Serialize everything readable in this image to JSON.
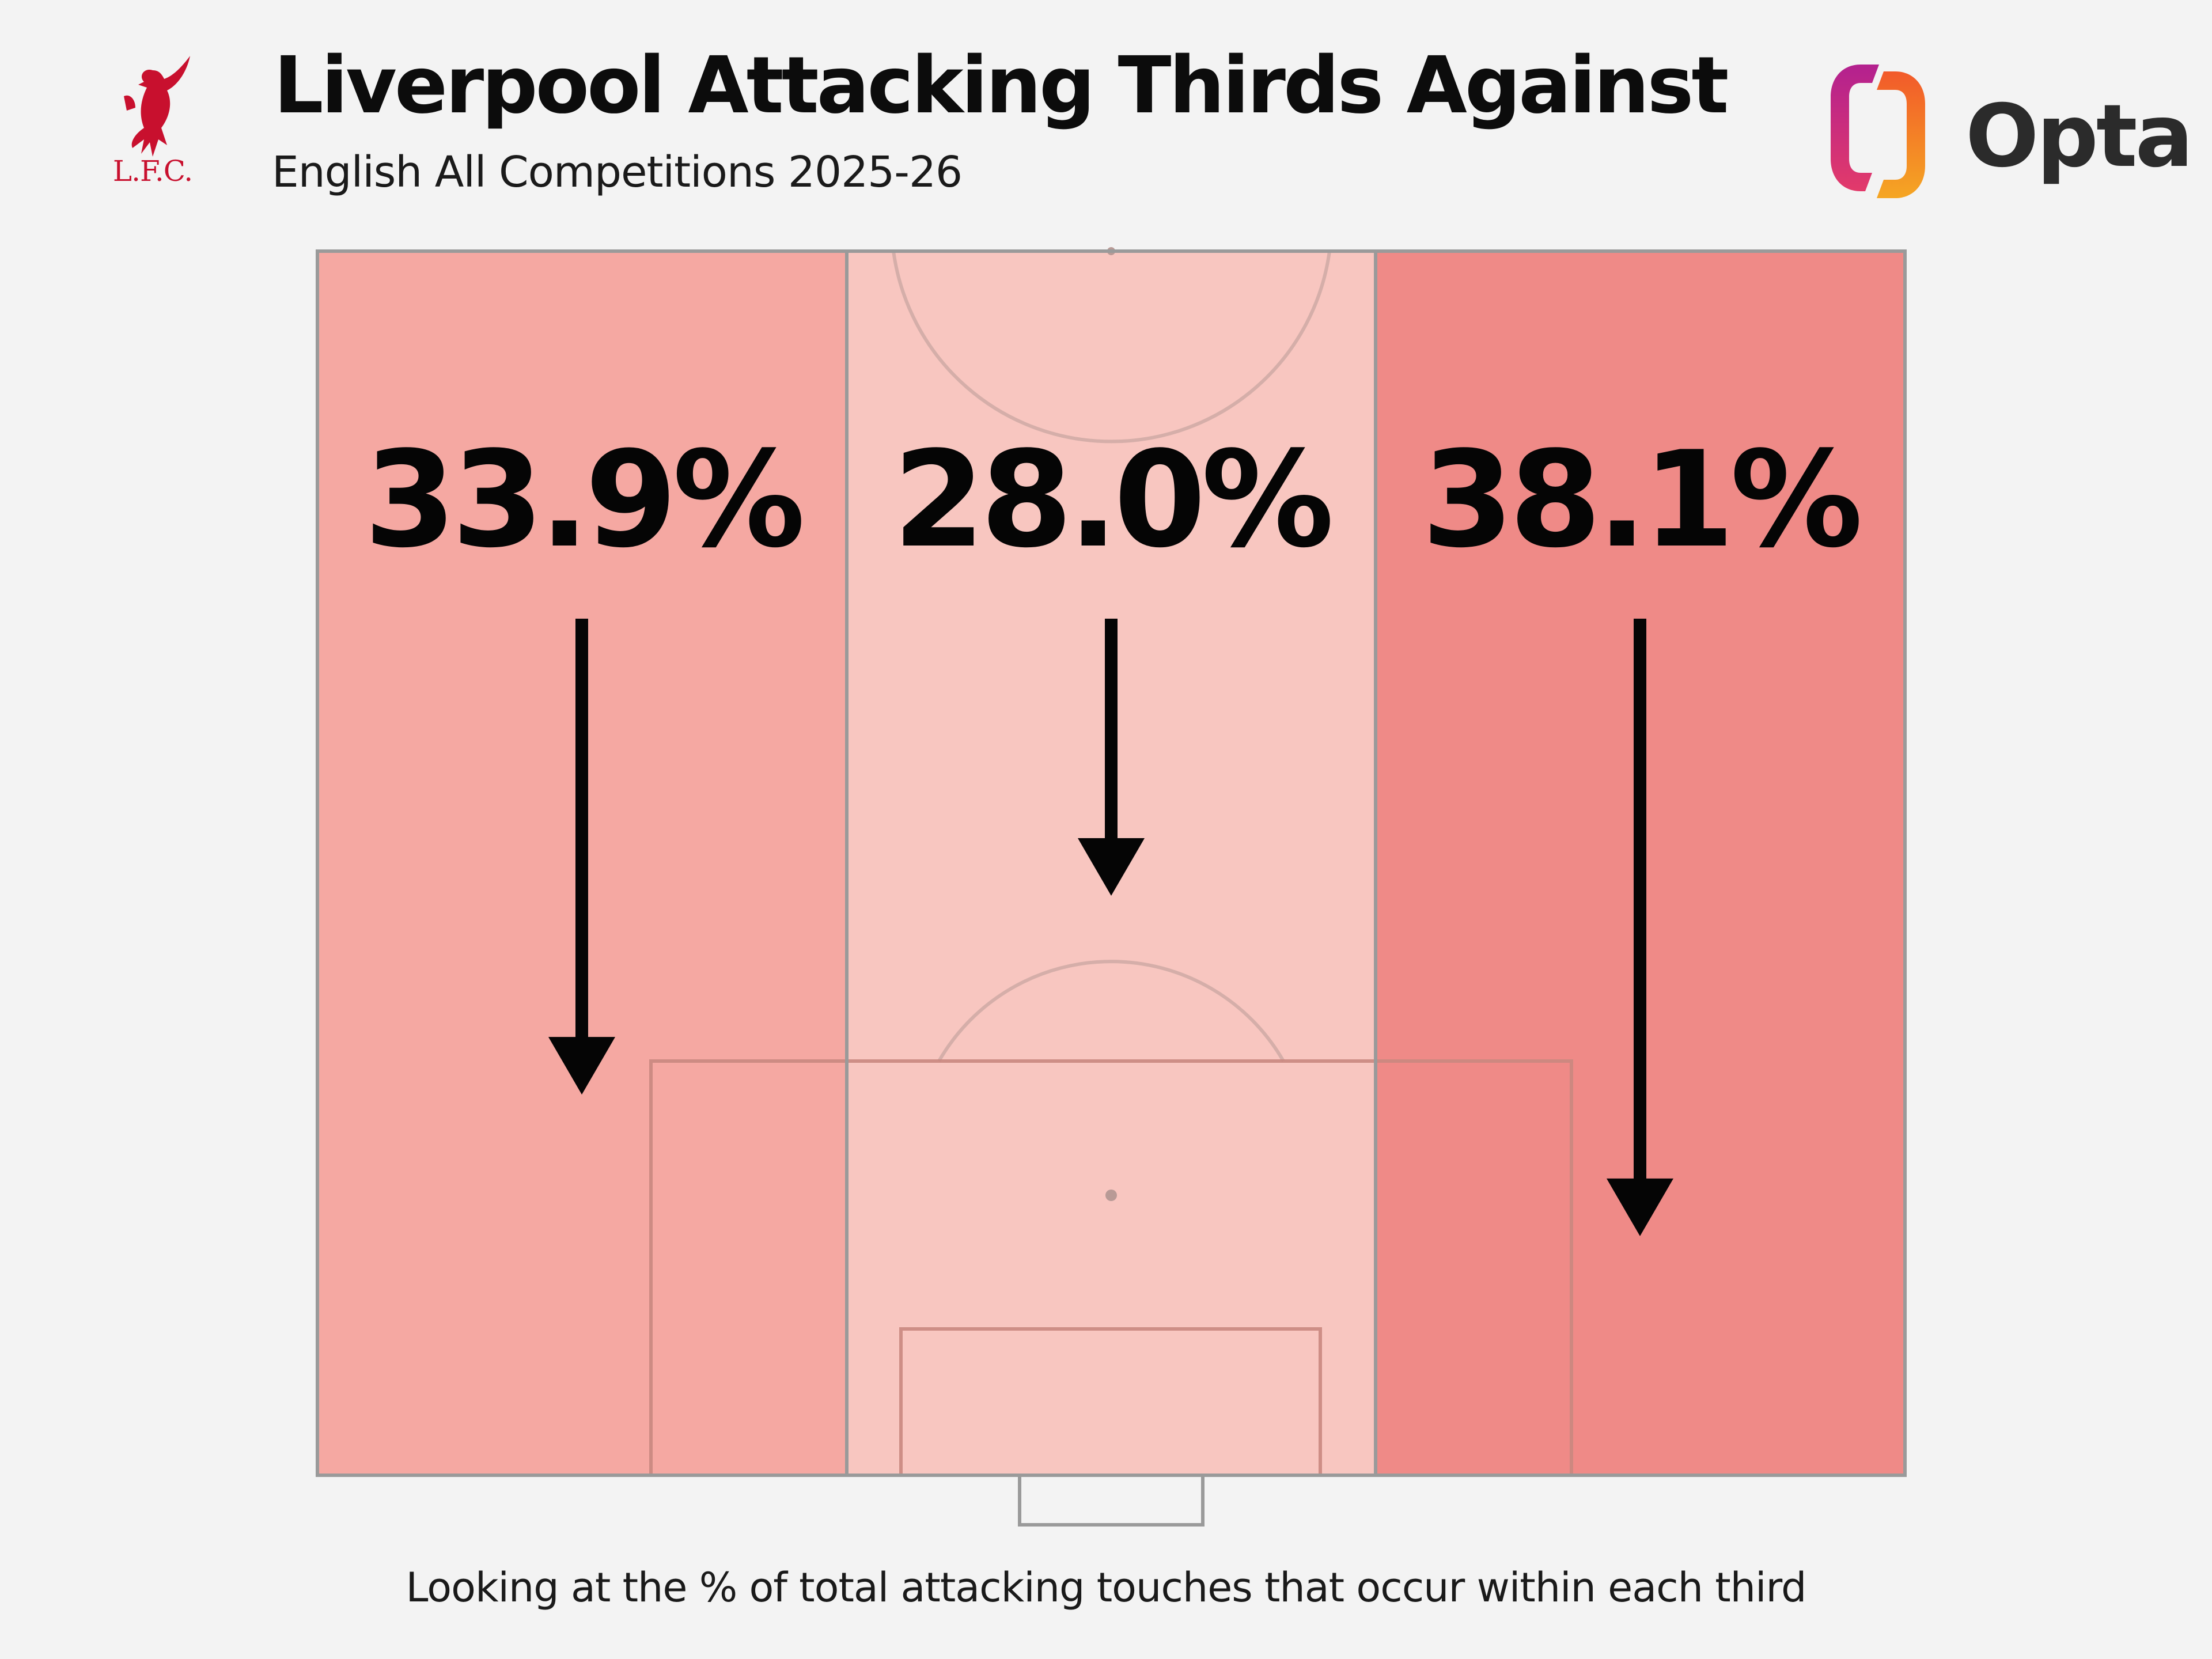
{
  "header": {
    "title": "Liverpool Attacking Thirds Against",
    "subtitle": "English All Competitions 2025-26",
    "club_logo_text": "L.F.C.",
    "club_logo_icon": "liverbird-icon",
    "brand": "Opta",
    "brand_icon": "opta-logo-icon"
  },
  "colors": {
    "background": "#f3f3f3",
    "zone_left": "#f5a8a2",
    "zone_middle": "#f8c6c0",
    "zone_right": "#ef8a87",
    "club_red": "#c8102e"
  },
  "chart_data": {
    "type": "pitch-thirds",
    "unit": "%",
    "categories": [
      "Left",
      "Centre",
      "Right"
    ],
    "values": [
      33.9,
      28.0,
      38.1
    ],
    "labels": [
      "33.9%",
      "28.0%",
      "38.1%"
    ],
    "annotation": "Looking at the % of total attacking touches that occur within each third"
  }
}
